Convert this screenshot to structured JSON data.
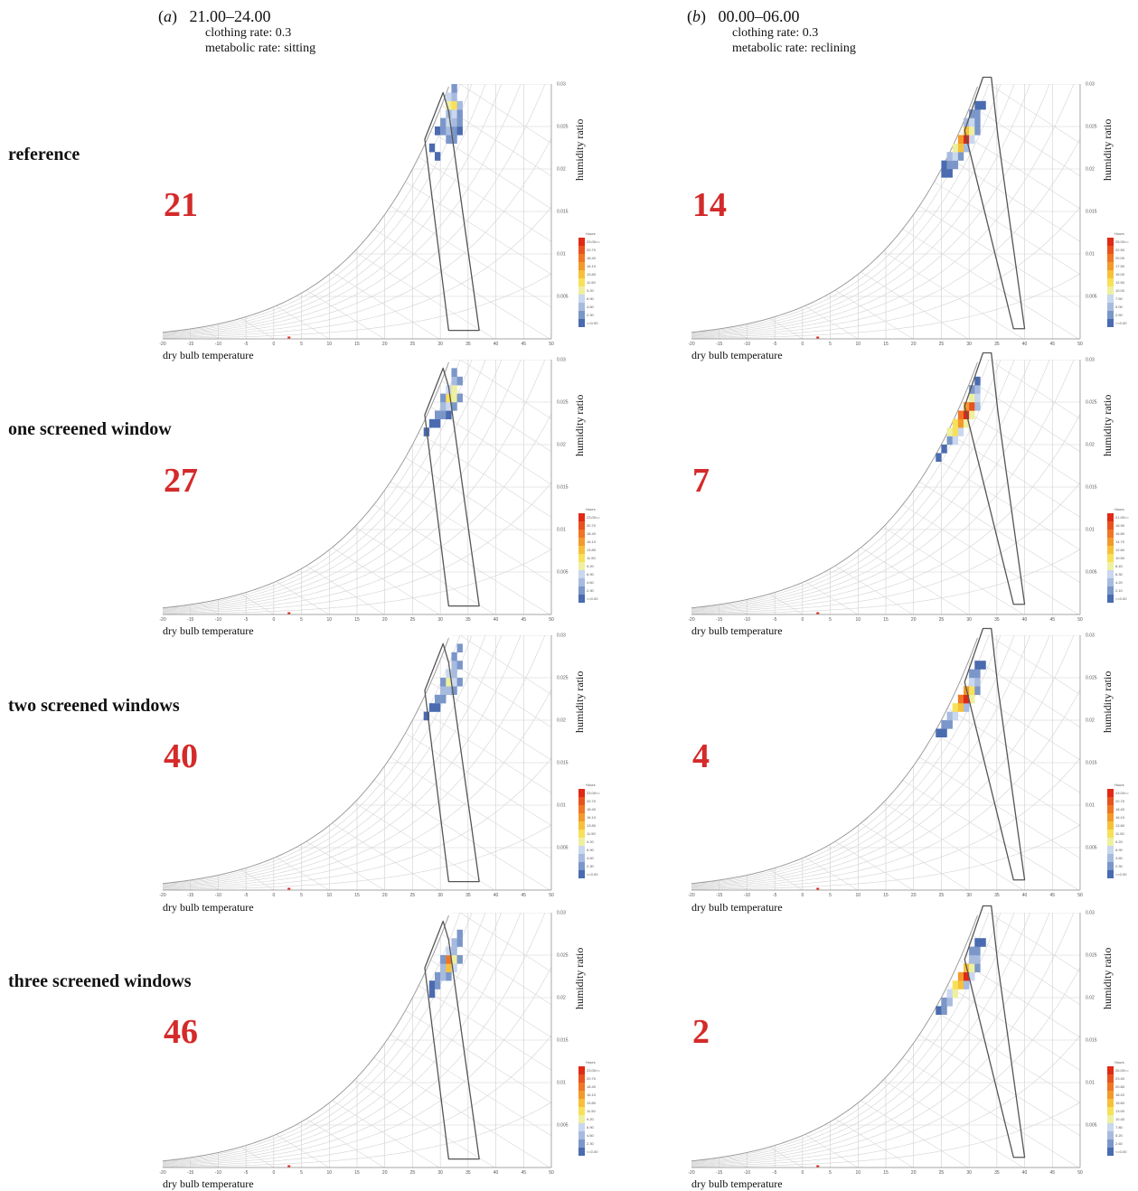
{
  "columns": [
    {
      "letter": "a",
      "period": "21.00–24.00",
      "clothing": "clothing rate: 0.3",
      "metabolic": "metabolic rate: sitting"
    },
    {
      "letter": "b",
      "period": "00.00–06.00",
      "clothing": "clothing rate: 0.3",
      "metabolic": "metabolic rate: reclining"
    }
  ],
  "rows": [
    {
      "label": "reference"
    },
    {
      "label": "one screened window"
    },
    {
      "label": "two screened windows"
    },
    {
      "label": "three screened windows"
    }
  ],
  "chart_data": {
    "type": "heatmap",
    "xlabel": "dry bulb temperature",
    "ylabel": "humidity ratio",
    "xlim": [
      -20,
      50
    ],
    "ylim": [
      0,
      0.03
    ],
    "x_ticks": [
      "-20",
      "-15",
      "-10",
      "-5",
      "0",
      "5",
      "10",
      "15",
      "20",
      "25",
      "30",
      "35",
      "40",
      "45",
      "50"
    ],
    "y_ticks": [
      "0.005",
      "0.01",
      "0.015",
      "0.02",
      "0.025",
      "0.03"
    ],
    "rh_curves": [
      10,
      20,
      30,
      40,
      50,
      60,
      70,
      80,
      90,
      100
    ],
    "enthalpy_lines": [
      -10,
      0,
      10,
      20,
      30,
      40,
      50,
      60,
      70,
      80,
      90,
      100,
      110
    ],
    "comfort_zones": {
      "a": [
        [
          27.2,
          0.0235
        ],
        [
          30.5,
          0.029
        ],
        [
          31.5,
          0.0268
        ],
        [
          37.0,
          0.001
        ],
        [
          31.5,
          0.001
        ]
      ],
      "b": [
        [
          29.2,
          0.0245
        ],
        [
          32.5,
          0.0308
        ],
        [
          34.0,
          0.0308
        ],
        [
          35.2,
          0.0238
        ],
        [
          40.0,
          0.0012
        ],
        [
          38.0,
          0.0012
        ]
      ]
    },
    "colors": [
      "#4a6bb0",
      "#7b96c9",
      "#a7bbdf",
      "#c9d7ef",
      "#eef0a0",
      "#f7e05a",
      "#f7c03a",
      "#f29a2c",
      "#ee7624",
      "#e8521f",
      "#e02a16"
    ],
    "legend_title": "Hours",
    "panels": [
      {
        "column": "a",
        "row": "reference",
        "uncomfortable_hours": "21",
        "legend": [
          "23.00<=",
          "20.70",
          "18.40",
          "16.10",
          "13.80",
          "11.50",
          "9.20",
          "6.90",
          "4.60",
          "2.30",
          "<=0.00"
        ],
        "cells": [
          [
            31,
            0.023,
            1
          ],
          [
            32,
            0.023,
            1
          ],
          [
            29,
            0.024,
            0
          ],
          [
            30,
            0.024,
            1
          ],
          [
            31,
            0.024,
            2
          ],
          [
            32,
            0.024,
            1
          ],
          [
            33,
            0.024,
            0
          ],
          [
            30,
            0.025,
            1
          ],
          [
            31,
            0.025,
            3
          ],
          [
            32,
            0.025,
            2
          ],
          [
            33,
            0.025,
            1
          ],
          [
            31,
            0.026,
            2
          ],
          [
            32,
            0.026,
            3
          ],
          [
            33,
            0.026,
            1
          ],
          [
            31,
            0.027,
            4
          ],
          [
            32,
            0.027,
            5
          ],
          [
            33,
            0.027,
            2
          ],
          [
            31,
            0.028,
            3
          ],
          [
            32,
            0.028,
            2
          ],
          [
            32,
            0.029,
            1
          ],
          [
            28,
            0.022,
            0
          ],
          [
            29,
            0.021,
            0
          ]
        ]
      },
      {
        "column": "a",
        "row": "one screened window",
        "uncomfortable_hours": "27",
        "legend": [
          "23.00<=",
          "20.70",
          "18.40",
          "16.10",
          "13.80",
          "11.50",
          "9.20",
          "6.90",
          "4.60",
          "2.30",
          "<=0.00"
        ],
        "cells": [
          [
            28,
            0.022,
            0
          ],
          [
            29,
            0.022,
            0
          ],
          [
            29,
            0.023,
            1
          ],
          [
            30,
            0.023,
            1
          ],
          [
            31,
            0.023,
            0
          ],
          [
            30,
            0.024,
            2
          ],
          [
            31,
            0.024,
            3
          ],
          [
            32,
            0.024,
            1
          ],
          [
            30,
            0.025,
            1
          ],
          [
            31,
            0.025,
            5
          ],
          [
            32,
            0.025,
            4
          ],
          [
            33,
            0.025,
            1
          ],
          [
            31,
            0.026,
            3
          ],
          [
            32,
            0.026,
            4
          ],
          [
            32,
            0.027,
            2
          ],
          [
            33,
            0.027,
            1
          ],
          [
            32,
            0.028,
            1
          ],
          [
            27,
            0.021,
            0
          ]
        ]
      },
      {
        "column": "a",
        "row": "two screened windows",
        "uncomfortable_hours": "40",
        "legend": [
          "23.00<=",
          "20.70",
          "18.40",
          "16.10",
          "13.80",
          "11.50",
          "9.20",
          "6.90",
          "4.60",
          "2.30",
          "<=0.00"
        ],
        "cells": [
          [
            28,
            0.021,
            0
          ],
          [
            29,
            0.021,
            0
          ],
          [
            29,
            0.022,
            1
          ],
          [
            30,
            0.022,
            1
          ],
          [
            30,
            0.023,
            2
          ],
          [
            31,
            0.023,
            2
          ],
          [
            32,
            0.023,
            1
          ],
          [
            30,
            0.024,
            1
          ],
          [
            31,
            0.024,
            4
          ],
          [
            32,
            0.024,
            3
          ],
          [
            33,
            0.024,
            1
          ],
          [
            31,
            0.025,
            3
          ],
          [
            32,
            0.025,
            2
          ],
          [
            32,
            0.026,
            2
          ],
          [
            33,
            0.026,
            1
          ],
          [
            32,
            0.027,
            1
          ],
          [
            33,
            0.028,
            1
          ],
          [
            27,
            0.02,
            0
          ]
        ]
      },
      {
        "column": "a",
        "row": "three screened windows",
        "uncomfortable_hours": "46",
        "legend": [
          "23.00<=",
          "20.70",
          "18.40",
          "16.10",
          "13.80",
          "11.50",
          "9.20",
          "6.90",
          "4.60",
          "2.30",
          "<=0.00"
        ],
        "cells": [
          [
            28,
            0.021,
            0
          ],
          [
            29,
            0.021,
            1
          ],
          [
            29,
            0.022,
            1
          ],
          [
            30,
            0.022,
            2
          ],
          [
            31,
            0.022,
            1
          ],
          [
            30,
            0.023,
            2
          ],
          [
            31,
            0.023,
            6
          ],
          [
            32,
            0.023,
            3
          ],
          [
            30,
            0.024,
            1
          ],
          [
            31,
            0.024,
            8
          ],
          [
            32,
            0.024,
            4
          ],
          [
            33,
            0.024,
            1
          ],
          [
            31,
            0.025,
            3
          ],
          [
            32,
            0.025,
            2
          ],
          [
            32,
            0.026,
            2
          ],
          [
            33,
            0.026,
            1
          ],
          [
            33,
            0.027,
            1
          ],
          [
            28,
            0.02,
            0
          ]
        ]
      },
      {
        "column": "b",
        "row": "reference",
        "uncomfortable_hours": "14",
        "legend": [
          "25.00<=",
          "22.50",
          "20.00",
          "17.50",
          "15.00",
          "12.50",
          "10.00",
          "7.50",
          "5.00",
          "2.50",
          "<=0.00"
        ],
        "cells": [
          [
            25,
            0.019,
            0
          ],
          [
            26,
            0.019,
            0
          ],
          [
            25,
            0.02,
            0
          ],
          [
            26,
            0.02,
            1
          ],
          [
            27,
            0.02,
            1
          ],
          [
            26,
            0.021,
            2
          ],
          [
            27,
            0.021,
            3
          ],
          [
            28,
            0.021,
            1
          ],
          [
            27,
            0.022,
            4
          ],
          [
            28,
            0.022,
            6
          ],
          [
            29,
            0.022,
            2
          ],
          [
            28,
            0.023,
            7
          ],
          [
            29,
            0.023,
            10
          ],
          [
            30,
            0.023,
            3
          ],
          [
            29,
            0.024,
            6
          ],
          [
            30,
            0.024,
            4
          ],
          [
            31,
            0.024,
            1
          ],
          [
            29,
            0.025,
            2
          ],
          [
            30,
            0.025,
            3
          ],
          [
            31,
            0.025,
            1
          ],
          [
            30,
            0.026,
            1
          ],
          [
            31,
            0.026,
            1
          ],
          [
            31,
            0.027,
            0
          ],
          [
            32,
            0.027,
            0
          ]
        ]
      },
      {
        "column": "b",
        "row": "one screened window",
        "uncomfortable_hours": "7",
        "legend": [
          "21.00<=",
          "18.90",
          "16.80",
          "14.70",
          "12.60",
          "10.50",
          "8.40",
          "6.30",
          "4.20",
          "2.10",
          "<=0.00"
        ],
        "cells": [
          [
            25,
            0.019,
            0
          ],
          [
            26,
            0.02,
            1
          ],
          [
            27,
            0.02,
            3
          ],
          [
            26,
            0.021,
            4
          ],
          [
            27,
            0.021,
            5
          ],
          [
            28,
            0.021,
            3
          ],
          [
            27,
            0.022,
            5
          ],
          [
            28,
            0.022,
            7
          ],
          [
            29,
            0.022,
            4
          ],
          [
            28,
            0.023,
            8
          ],
          [
            29,
            0.023,
            10
          ],
          [
            30,
            0.023,
            4
          ],
          [
            29,
            0.024,
            7
          ],
          [
            30,
            0.024,
            9
          ],
          [
            31,
            0.024,
            2
          ],
          [
            30,
            0.025,
            4
          ],
          [
            31,
            0.025,
            3
          ],
          [
            30,
            0.026,
            1
          ],
          [
            31,
            0.026,
            2
          ],
          [
            31,
            0.027,
            0
          ],
          [
            24,
            0.018,
            0
          ]
        ]
      },
      {
        "column": "b",
        "row": "two screened windows",
        "uncomfortable_hours": "4",
        "legend": [
          "23.00<=",
          "20.70",
          "18.40",
          "16.10",
          "13.80",
          "11.50",
          "9.20",
          "6.90",
          "4.60",
          "2.30",
          "<=0.00"
        ],
        "cells": [
          [
            24,
            0.018,
            0
          ],
          [
            25,
            0.018,
            0
          ],
          [
            25,
            0.019,
            1
          ],
          [
            26,
            0.019,
            1
          ],
          [
            26,
            0.02,
            2
          ],
          [
            27,
            0.02,
            3
          ],
          [
            27,
            0.021,
            5
          ],
          [
            28,
            0.021,
            6
          ],
          [
            29,
            0.021,
            2
          ],
          [
            28,
            0.022,
            8
          ],
          [
            29,
            0.022,
            10
          ],
          [
            30,
            0.022,
            4
          ],
          [
            29,
            0.023,
            7
          ],
          [
            30,
            0.023,
            5
          ],
          [
            31,
            0.023,
            1
          ],
          [
            30,
            0.024,
            3
          ],
          [
            31,
            0.024,
            2
          ],
          [
            30,
            0.025,
            1
          ],
          [
            31,
            0.025,
            1
          ],
          [
            31,
            0.026,
            0
          ],
          [
            32,
            0.026,
            0
          ]
        ]
      },
      {
        "column": "b",
        "row": "three screened windows",
        "uncomfortable_hours": "2",
        "legend": [
          "26.00<=",
          "23.40",
          "20.80",
          "18.20",
          "15.60",
          "13.00",
          "10.40",
          "7.80",
          "5.20",
          "2.60",
          "<=0.00"
        ],
        "cells": [
          [
            24,
            0.018,
            0
          ],
          [
            25,
            0.018,
            1
          ],
          [
            25,
            0.019,
            1
          ],
          [
            26,
            0.019,
            2
          ],
          [
            26,
            0.02,
            3
          ],
          [
            27,
            0.02,
            4
          ],
          [
            27,
            0.021,
            5
          ],
          [
            28,
            0.021,
            6
          ],
          [
            29,
            0.021,
            2
          ],
          [
            28,
            0.022,
            7
          ],
          [
            29,
            0.022,
            10
          ],
          [
            30,
            0.022,
            3
          ],
          [
            29,
            0.023,
            6
          ],
          [
            30,
            0.023,
            4
          ],
          [
            31,
            0.023,
            1
          ],
          [
            30,
            0.024,
            2
          ],
          [
            31,
            0.024,
            2
          ],
          [
            30,
            0.025,
            1
          ],
          [
            31,
            0.025,
            1
          ],
          [
            31,
            0.026,
            0
          ],
          [
            32,
            0.026,
            0
          ]
        ]
      }
    ]
  }
}
